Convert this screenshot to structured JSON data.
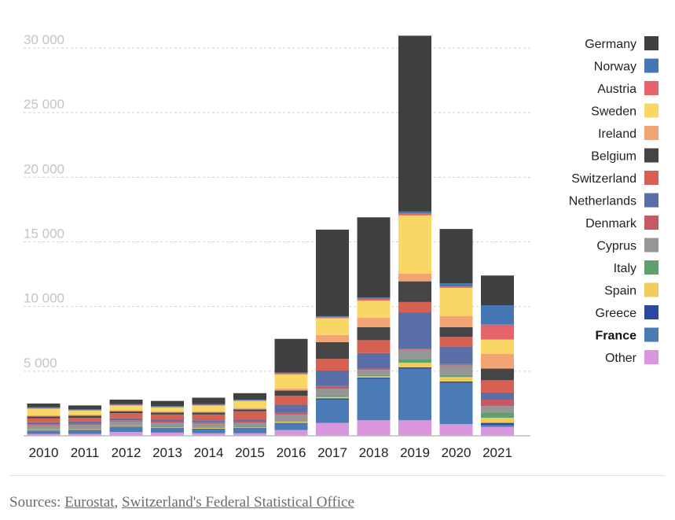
{
  "chart_data": {
    "type": "bar",
    "stacked": true,
    "categories": [
      "2010",
      "2011",
      "2012",
      "2013",
      "2014",
      "2015",
      "2016",
      "2017",
      "2018",
      "2019",
      "2020",
      "2021"
    ],
    "y_ticks": [
      {
        "value": 5000,
        "label": "5 000"
      },
      {
        "value": 10000,
        "label": "10 000"
      },
      {
        "value": 15000,
        "label": "15 000"
      },
      {
        "value": 20000,
        "label": "20 000"
      },
      {
        "value": 25000,
        "label": "25 000"
      },
      {
        "value": 30000,
        "label": "30 000"
      }
    ],
    "ylim": [
      0,
      30000
    ],
    "grid": true,
    "legend_position": "right",
    "highlight_series": "France",
    "series": [
      {
        "name": "Other",
        "color": "#d896dc",
        "values": [
          150,
          150,
          300,
          250,
          200,
          200,
          450,
          1000,
          1200,
          1200,
          900,
          700
        ]
      },
      {
        "name": "France",
        "color": "#4a7bb5",
        "values": [
          200,
          250,
          350,
          300,
          300,
          350,
          500,
          1800,
          3200,
          4000,
          3200,
          150
        ]
      },
      {
        "name": "Greece",
        "color": "#2b4a9e",
        "values": [
          50,
          50,
          50,
          50,
          50,
          50,
          50,
          100,
          100,
          100,
          100,
          150
        ]
      },
      {
        "name": "Spain",
        "color": "#f0cc5c",
        "values": [
          50,
          50,
          50,
          50,
          50,
          50,
          100,
          100,
          100,
          350,
          350,
          400
        ]
      },
      {
        "name": "Italy",
        "color": "#5fa06e",
        "values": [
          50,
          50,
          50,
          50,
          50,
          50,
          50,
          100,
          100,
          300,
          150,
          400
        ]
      },
      {
        "name": "Cyprus",
        "color": "#969696",
        "values": [
          300,
          300,
          300,
          300,
          300,
          300,
          500,
          550,
          400,
          700,
          750,
          500
        ]
      },
      {
        "name": "Denmark",
        "color": "#c55a64",
        "values": [
          100,
          100,
          100,
          100,
          100,
          100,
          150,
          200,
          100,
          100,
          100,
          500
        ]
      },
      {
        "name": "Netherlands",
        "color": "#5a6fa8",
        "values": [
          150,
          150,
          150,
          150,
          150,
          150,
          600,
          1200,
          1200,
          2800,
          1350,
          550
        ]
      },
      {
        "name": "Switzerland",
        "color": "#d66152",
        "values": [
          300,
          300,
          400,
          400,
          450,
          650,
          700,
          900,
          1000,
          800,
          750,
          950
        ]
      },
      {
        "name": "Belgium",
        "color": "#454545",
        "values": [
          150,
          150,
          150,
          150,
          150,
          150,
          400,
          1300,
          1000,
          1600,
          750,
          900
        ]
      },
      {
        "name": "Ireland",
        "color": "#f2a574",
        "values": [
          100,
          100,
          100,
          100,
          100,
          100,
          150,
          550,
          750,
          600,
          850,
          1150
        ]
      },
      {
        "name": "Sweden",
        "color": "#f8d766",
        "values": [
          500,
          300,
          350,
          300,
          450,
          550,
          1100,
          1300,
          1300,
          4500,
          2200,
          1100
        ]
      },
      {
        "name": "Austria",
        "color": "#e5636a",
        "values": [
          50,
          50,
          50,
          50,
          50,
          50,
          100,
          100,
          150,
          150,
          100,
          1150
        ]
      },
      {
        "name": "Norway",
        "color": "#4577b4",
        "values": [
          50,
          50,
          50,
          50,
          50,
          50,
          50,
          50,
          100,
          150,
          250,
          1500
        ]
      },
      {
        "name": "Germany",
        "color": "#404040",
        "values": [
          300,
          300,
          350,
          400,
          500,
          500,
          2600,
          6700,
          6200,
          13600,
          4200,
          2300
        ]
      }
    ]
  },
  "footer": {
    "prefix": "Sources: ",
    "source1": "Eurostat",
    "separator": ", ",
    "source2": "Switzerland's Federal Statistical Office"
  }
}
